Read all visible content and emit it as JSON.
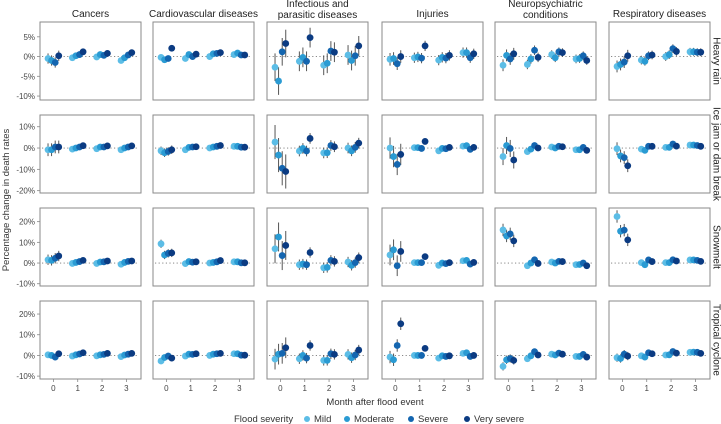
{
  "chart_data": {
    "type": "scatter",
    "ylabel": "Percentage change in death rates",
    "xlabel": "Month after flood event",
    "legend_title": "Flood severity",
    "legend_placement": "bottom",
    "severities": [
      "Mild",
      "Moderate",
      "Severe",
      "Very severe"
    ],
    "colors": [
      "#5cbde6",
      "#2a9bd3",
      "#1466b0",
      "#0b3b82"
    ],
    "months": [
      0,
      1,
      2,
      3
    ],
    "xlim": [
      -0.55,
      3.6
    ],
    "columns": [
      [
        "Cancers"
      ],
      [
        "Cardiovascular diseases"
      ],
      [
        "Infectious and",
        "parasitic diseases"
      ],
      [
        "Injuries"
      ],
      [
        "Neuropsychiatric",
        "conditions"
      ],
      [
        "Respiratory diseases"
      ]
    ],
    "rows": [
      {
        "label": "Heavy rain",
        "ylim": [
          -11,
          8.75
        ],
        "yticks": [
          5,
          0,
          -5,
          -10
        ],
        "ytick_labels": [
          "5%",
          "0%",
          "-5%",
          "-10%"
        ],
        "panels": [
          {
            "values": [
              [
                -0.5,
                -1,
                -1.5,
                0.2
              ],
              [
                -0.3,
                0.2,
                0.5,
                1.2
              ],
              [
                -0.1,
                0.5,
                0.3,
                0.8
              ],
              [
                -1,
                -0.3,
                0.4,
                1
              ]
            ],
            "ci": [
              1.3,
              0.6,
              0.6,
              0.6
            ]
          },
          {
            "values": [
              [
                -0.2,
                -0.8,
                -0.5,
                2.1
              ],
              [
                -0.5,
                0.5,
                0,
                0.6
              ],
              [
                0,
                0.7,
                0.8,
                1
              ],
              [
                0.5,
                0.9,
                0.4,
                0.4
              ]
            ],
            "ci": [
              0.6,
              0.5,
              0.5,
              0.5
            ]
          },
          {
            "values": [
              [
                -2.7,
                -6.2,
                1.2,
                3.3
              ],
              [
                -1.2,
                -0.2,
                -1.2,
                4.8
              ],
              [
                -2.2,
                -1.7,
                1.4,
                1.1
              ],
              [
                0.4,
                -1,
                0.2,
                2.7
              ]
            ],
            "ci": [
              3.5,
              2.5,
              2.5,
              2.5
            ]
          },
          {
            "values": [
              [
                -0.7,
                -0.5,
                -1.8,
                0
              ],
              [
                -0.3,
                -0.1,
                -0.4,
                2.7
              ],
              [
                -0.9,
                -0.2,
                -0.4,
                0.3
              ],
              [
                1,
                1,
                -0.3,
                0.7
              ]
            ],
            "ci": [
              1.6,
              1.3,
              1.3,
              1.3
            ]
          },
          {
            "values": [
              [
                -2.2,
                0.3,
                -0.6,
                0.7
              ],
              [
                -2,
                -0.6,
                1.6,
                -0.2
              ],
              [
                0.5,
                -0.3,
                1.2,
                1
              ],
              [
                -0.6,
                -0.5,
                0.2,
                -1
              ]
            ],
            "ci": [
              1.5,
              1.2,
              1.1,
              1.1
            ]
          },
          {
            "values": [
              [
                -2.5,
                -2,
                -1.4,
                0.2
              ],
              [
                -0.9,
                -1.2,
                0.2,
                0.4
              ],
              [
                0,
                0.5,
                2,
                1.3
              ],
              [
                1.2,
                1.2,
                1.1,
                1.1
              ]
            ],
            "ci": [
              1.5,
              1.1,
              1.1,
              1.0
            ]
          }
        ]
      },
      {
        "label": "Ice jam or dam break",
        "ylim": [
          -21.1,
          15.5
        ],
        "yticks": [
          10,
          0,
          -10,
          -20
        ],
        "ytick_labels": [
          "10%",
          "0%",
          "-10%",
          "-20%"
        ],
        "panels": [
          {
            "values": [
              [
                -0.8,
                -0.8,
                0.5,
                0.5
              ],
              [
                -0.5,
                0,
                0.5,
                1.1
              ],
              [
                -0.3,
                0.5,
                0.5,
                1
              ],
              [
                -0.8,
                0,
                0.5,
                1
              ]
            ],
            "ci": [
              3,
              0.8,
              0.8,
              0.8
            ]
          },
          {
            "values": [
              [
                -1.3,
                -2.2,
                -1.6,
                -0.8
              ],
              [
                -0.8,
                0.3,
                0.5,
                0.6
              ],
              [
                0,
                0.5,
                0.8,
                1.2
              ],
              [
                0.8,
                0.8,
                0.4,
                0.4
              ]
            ],
            "ci": [
              2,
              0.8,
              0.8,
              0.8
            ]
          },
          {
            "values": [
              [
                2.8,
                -3.3,
                -9.5,
                -11
              ],
              [
                -1.4,
                -0.2,
                -1.4,
                4.5
              ],
              [
                -2.3,
                -2.2,
                1.2,
                0.6
              ],
              [
                0,
                -1.3,
                0.3,
                2.3
              ]
            ],
            "ci": [
              8,
              2.5,
              2.5,
              2.5
            ]
          },
          {
            "values": [
              [
                0,
                -4,
                -7.7,
                -3
              ],
              [
                0.2,
                0.2,
                -0.2,
                3.1
              ],
              [
                -1.3,
                -0.2,
                -0.3,
                0.3
              ],
              [
                0.9,
                1.1,
                -0.6,
                0.3
              ]
            ],
            "ci": [
              5,
              1.2,
              1.2,
              1.2
            ]
          },
          {
            "values": [
              [
                -4,
                1.2,
                -0.2,
                -5.6
              ],
              [
                -1.7,
                -0.5,
                1.2,
                0
              ],
              [
                0.5,
                0,
                0.8,
                0.6
              ],
              [
                -0.8,
                -0.8,
                0.3,
                -1.1
              ]
            ],
            "ci": [
              4,
              1.2,
              1.2,
              1.2
            ]
          },
          {
            "values": [
              [
                -0.3,
                -3.7,
                -4.5,
                -8.3
              ],
              [
                -0.5,
                -1.1,
                0.8,
                0.8
              ],
              [
                0.3,
                0.3,
                1.9,
                0.9
              ],
              [
                1.4,
                1.4,
                1.2,
                0.8
              ]
            ],
            "ci": [
              3,
              1.2,
              1.2,
              1.2
            ]
          }
        ]
      },
      {
        "label": "Snowmelt",
        "ylim": [
          -11.1,
          26.6
        ],
        "yticks": [
          20,
          10,
          0,
          -10
        ],
        "ytick_labels": [
          "20%",
          "10%",
          "0%",
          "-10%"
        ],
        "panels": [
          {
            "values": [
              [
                1.6,
                1.3,
                2.3,
                3.4
              ],
              [
                -0.2,
                0.3,
                0.7,
                1.3
              ],
              [
                -0.2,
                0.5,
                0.6,
                1
              ],
              [
                -0.6,
                0.3,
                0.8,
                1
              ]
            ],
            "ci": [
              2.5,
              0.8,
              0.8,
              0.8
            ]
          },
          {
            "values": [
              [
                9.3,
                3.9,
                4.7,
                4.9
              ],
              [
                -0.3,
                0.7,
                0.4,
                0.6
              ],
              [
                0,
                0.3,
                0.6,
                1.2
              ],
              [
                0.6,
                0.6,
                0.1,
                0.1
              ]
            ],
            "ci": [
              2,
              0.8,
              0.8,
              0.8
            ]
          },
          {
            "values": [
              [
                6.9,
                12.6,
                3.6,
                8.5
              ],
              [
                -0.8,
                -0.5,
                -0.8,
                5.1
              ],
              [
                -2.3,
                -2.1,
                1.3,
                0.8
              ],
              [
                0.5,
                -1.1,
                0.2,
                2.6
              ]
            ],
            "ci": [
              7,
              2.5,
              2.5,
              2.5
            ]
          },
          {
            "values": [
              [
                3.9,
                6.4,
                -1.3,
                5.6
              ],
              [
                0.2,
                0.2,
                0.2,
                3.1
              ],
              [
                -1.1,
                0,
                -0.3,
                0.2
              ],
              [
                1.1,
                1.3,
                -0.5,
                0.3
              ]
            ],
            "ci": [
              5,
              1.2,
              1.2,
              1.2
            ]
          },
          {
            "values": [
              [
                16,
                13.1,
                14.1,
                10.7
              ],
              [
                -1.3,
                0,
                1.6,
                -0.2
              ],
              [
                0.5,
                0,
                0.8,
                0.7
              ],
              [
                -0.8,
                -0.7,
                0,
                -1.3
              ]
            ],
            "ci": [
              3,
              1.2,
              1.2,
              1.2
            ]
          },
          {
            "values": [
              [
                22.5,
                15.4,
                15.9,
                11.2
              ],
              [
                0.2,
                -0.8,
                1.5,
                0.7
              ],
              [
                0.2,
                0.2,
                1.6,
                1
              ],
              [
                1.5,
                1.5,
                1.3,
                0.8
              ]
            ],
            "ci": [
              3,
              1.2,
              1.2,
              1.2
            ]
          }
        ]
      },
      {
        "label": "Tropical cyclone",
        "ylim": [
          -11.4,
          26.3
        ],
        "yticks": [
          20,
          10,
          0,
          -10
        ],
        "ytick_labels": [
          "20%",
          "10%",
          "0%",
          "-10%"
        ],
        "panels": [
          {
            "values": [
              [
                0.3,
                0,
                -0.8,
                0.8
              ],
              [
                -0.3,
                0.3,
                0.7,
                1.3
              ],
              [
                -0.2,
                0.3,
                0.5,
                1
              ],
              [
                -0.6,
                0.2,
                0.6,
                1
              ]
            ],
            "ci": [
              1.5,
              0.7,
              0.7,
              0.7
            ]
          },
          {
            "values": [
              [
                -2.7,
                -1,
                -0.3,
                -1.3
              ],
              [
                -0.3,
                0.6,
                0.5,
                0.8
              ],
              [
                0,
                0.6,
                0.8,
                1
              ],
              [
                0.8,
                0.8,
                0.1,
                0.1
              ]
            ],
            "ci": [
              1.5,
              0.7,
              0.7,
              0.7
            ]
          },
          {
            "values": [
              [
                -1.8,
                0.6,
                1,
                3.7
              ],
              [
                -1.6,
                0,
                -1.3,
                4.8
              ],
              [
                -2.4,
                -2.4,
                0.8,
                0.5
              ],
              [
                0.5,
                -1.1,
                0.2,
                2.6
              ]
            ],
            "ci": [
              5,
              2.5,
              2.5,
              2.5
            ]
          },
          {
            "values": [
              [
                -0.8,
                -2.1,
                4.8,
                15.3
              ],
              [
                0,
                0,
                0,
                3.4
              ],
              [
                -1.3,
                -0.2,
                -0.5,
                -0.2
              ],
              [
                1,
                1.3,
                -0.5,
                0
              ]
            ],
            "ci": [
              3,
              1.2,
              1.2,
              1.2
            ]
          },
          {
            "values": [
              [
                -5.3,
                -2.1,
                -1.5,
                -2.4
              ],
              [
                -1.6,
                -0.2,
                1.8,
                0.2
              ],
              [
                0.6,
                0.2,
                1.1,
                0.6
              ],
              [
                -0.5,
                -0.5,
                0.5,
                -0.8
              ]
            ],
            "ci": [
              2,
              1.2,
              1.2,
              1.2
            ]
          },
          {
            "values": [
              [
                -1.1,
                -1.5,
                0.6,
                -0.3
              ],
              [
                -0.2,
                -0.8,
                1.3,
                0.8
              ],
              [
                0.2,
                0.3,
                1.9,
                1.1
              ],
              [
                1.5,
                1.6,
                1.5,
                1
              ]
            ],
            "ci": [
              2,
              1.2,
              1.2,
              1.2
            ]
          }
        ]
      }
    ]
  }
}
